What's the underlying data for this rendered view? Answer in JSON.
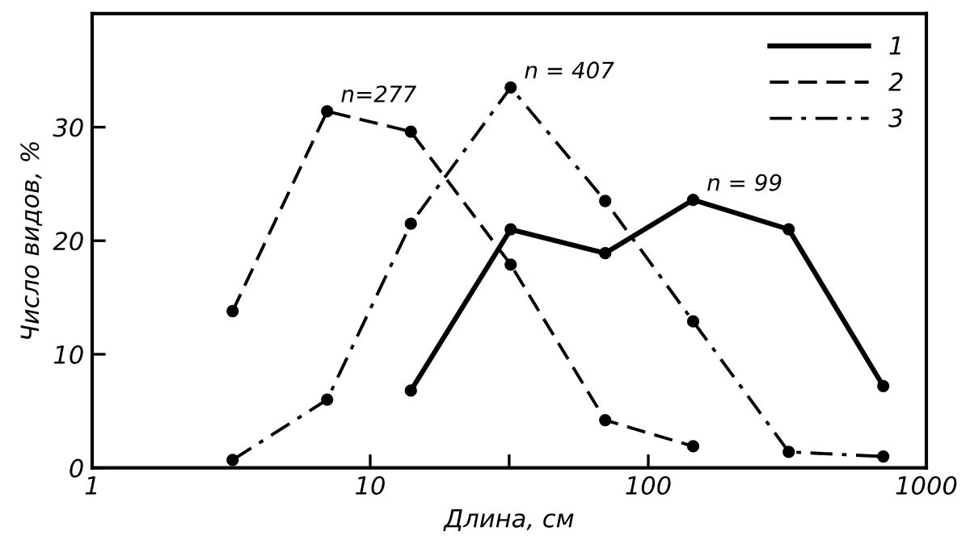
{
  "chart_data": {
    "type": "line",
    "xlabel": "Длина, см",
    "ylabel": "Число видов, %",
    "log": "x",
    "xlim": [
      1,
      1000
    ],
    "xticks": [
      1,
      10,
      {
        "value": 31.6,
        "label": null
      },
      100,
      1000
    ],
    "ylim": [
      0,
      40
    ],
    "yticks": [
      0,
      10,
      20,
      30
    ],
    "grid": false,
    "legend": "top right",
    "marker": "circle",
    "series": [
      {
        "name": "1",
        "color": "#000000",
        "line_style": "solid",
        "x": [
          14,
          32,
          70,
          145,
          320,
          700
        ],
        "values": [
          6.8,
          21.0,
          18.9,
          23.6,
          21.0,
          7.2
        ]
      },
      {
        "name": "2",
        "color": "#000000",
        "line_style": "dashed",
        "x": [
          3.2,
          7,
          14,
          32,
          70,
          145
        ],
        "values": [
          13.8,
          31.4,
          29.6,
          17.9,
          4.2,
          1.9
        ]
      },
      {
        "name": "3",
        "color": "#000000",
        "line_style": "dashdot",
        "x": [
          3.2,
          7,
          14,
          32,
          70,
          145,
          320,
          700
        ],
        "values": [
          0.7,
          6.0,
          21.5,
          33.5,
          23.5,
          12.9,
          1.4,
          1.0
        ]
      }
    ],
    "annotations": [
      {
        "text": "n=277",
        "x": 7,
        "y": 31.4
      },
      {
        "text": "n = 407",
        "x": 32,
        "y": 33.5
      },
      {
        "text": "n = 99",
        "x": 145,
        "y": 23.6
      }
    ]
  }
}
